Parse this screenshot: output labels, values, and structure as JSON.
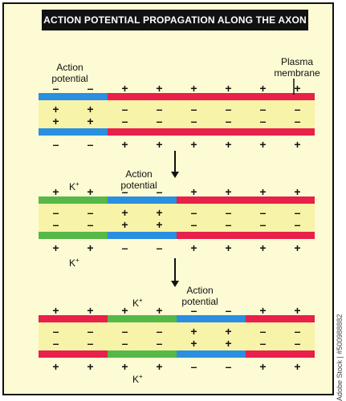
{
  "title": "ACTION POTENTIAL PROPAGATION ALONG THE AXON",
  "labels": {
    "action_potential_line1": "Action",
    "action_potential_line2": "potential",
    "plasma_membrane_line1": "Plasma",
    "plasma_membrane_line2": "membrane",
    "potassium_ion": "K",
    "potassium_charge": "+"
  },
  "symbols": {
    "plus": "+",
    "minus": "–"
  },
  "colors": {
    "background": "#fdfbd4",
    "frame": "#111111",
    "axoplasm": "#f7f3a8",
    "resting": "#e8204a",
    "depolarized": "#2a8fe0",
    "repolarizing": "#56b848",
    "title_bar": "#111111",
    "text": "#111111"
  },
  "panels": [
    {
      "segments": [
        "depolarized",
        "resting"
      ],
      "outside_top": [
        "-",
        "-",
        "+",
        "+",
        "+",
        "+",
        "+",
        "+"
      ],
      "inside_upper": [
        "+",
        "+",
        "-",
        "-",
        "-",
        "-",
        "-",
        "-"
      ],
      "inside_lower": [
        "+",
        "+",
        "-",
        "-",
        "-",
        "-",
        "-",
        "-"
      ],
      "outside_bottom": [
        "-",
        "-",
        "+",
        "+",
        "+",
        "+",
        "+",
        "+"
      ]
    },
    {
      "segments": [
        "repolarizing",
        "depolarized",
        "resting"
      ],
      "outside_top": [
        "+",
        "+",
        "-",
        "-",
        "+",
        "+",
        "+",
        "+"
      ],
      "inside_upper": [
        "-",
        "-",
        "+",
        "+",
        "-",
        "-",
        "-",
        "-"
      ],
      "inside_lower": [
        "-",
        "-",
        "+",
        "+",
        "-",
        "-",
        "-",
        "-"
      ],
      "outside_bottom": [
        "+",
        "+",
        "-",
        "-",
        "+",
        "+",
        "+",
        "+"
      ]
    },
    {
      "segments": [
        "resting",
        "repolarizing",
        "depolarized",
        "resting"
      ],
      "outside_top": [
        "+",
        "+",
        "+",
        "+",
        "-",
        "-",
        "+",
        "+"
      ],
      "inside_upper": [
        "-",
        "-",
        "-",
        "-",
        "+",
        "+",
        "-",
        "-"
      ],
      "inside_lower": [
        "-",
        "-",
        "-",
        "-",
        "+",
        "+",
        "-",
        "-"
      ],
      "outside_bottom": [
        "+",
        "+",
        "+",
        "+",
        "-",
        "-",
        "+",
        "+"
      ]
    }
  ],
  "watermark": "Adobe Stock | #500988882"
}
